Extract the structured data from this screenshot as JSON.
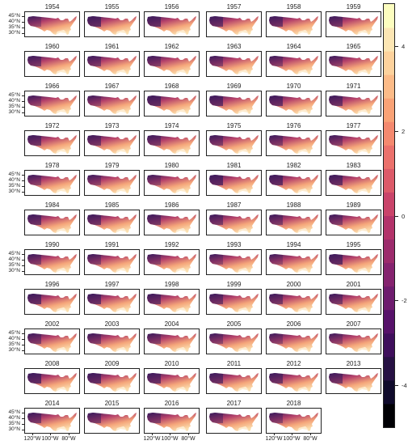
{
  "years": [
    "1954",
    "1955",
    "1956",
    "1957",
    "1958",
    "1959",
    "1960",
    "1961",
    "1962",
    "1963",
    "1964",
    "1965",
    "1966",
    "1967",
    "1968",
    "1969",
    "1970",
    "1971",
    "1972",
    "1973",
    "1974",
    "1975",
    "1976",
    "1977",
    "1978",
    "1979",
    "1980",
    "1981",
    "1982",
    "1983",
    "1984",
    "1985",
    "1986",
    "1987",
    "1988",
    "1989",
    "1990",
    "1991",
    "1992",
    "1993",
    "1994",
    "1995",
    "1996",
    "1997",
    "1998",
    "1999",
    "2000",
    "2001",
    "2002",
    "2003",
    "2004",
    "2005",
    "2006",
    "2007",
    "2008",
    "2009",
    "2010",
    "2011",
    "2012",
    "2013",
    "2014",
    "2015",
    "2016",
    "2017",
    "2018"
  ],
  "y_axis_labels": [
    "45°N",
    "40°N",
    "35°N",
    "30°N"
  ],
  "x_axis_labels": [
    "120°W",
    "100°W",
    "80°W"
  ],
  "legend": {
    "ticks": [
      "4",
      "2",
      "0",
      "-2",
      "-4"
    ],
    "min": -5,
    "max": 5,
    "colors": [
      "#000004",
      "#0f0a2b",
      "#271143",
      "#3f0f5c",
      "#57126a",
      "#6e1c6e",
      "#85236f",
      "#9c2b6c",
      "#b3336a",
      "#c9446a",
      "#dc5a69",
      "#eb716c",
      "#f4896f",
      "#f9a276",
      "#fcbb88",
      "#fdd29d",
      "#fce6b4",
      "#fcfdbf"
    ]
  },
  "map_colors": {
    "cold": "#3a1a5c",
    "mid": "#b4406a",
    "warm": "#f5a67a",
    "hot": "#fbe0b0"
  }
}
